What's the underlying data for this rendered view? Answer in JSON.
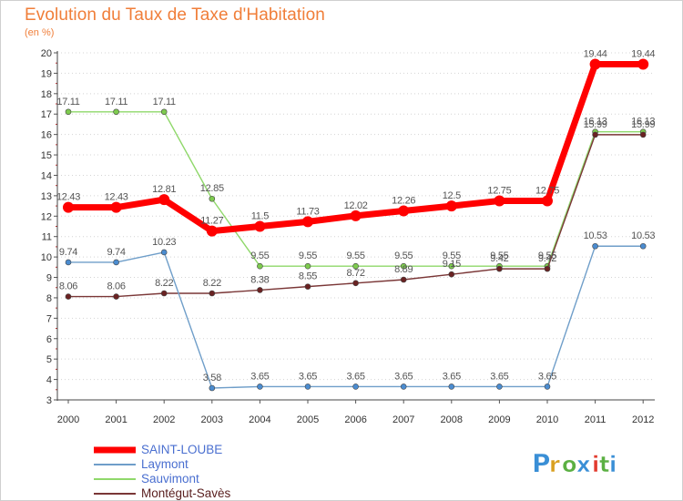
{
  "title": "Evolution du Taux de Taxe d'Habitation",
  "subtitle": "(en %)",
  "brand": {
    "text": "Proxiti",
    "letter_colors": [
      "#3a8fd6",
      "#d9a020",
      "#5bb043",
      "#3a8fd6",
      "#e23b2e",
      "#5bb043",
      "#3a8fd6"
    ]
  },
  "chart_data": {
    "type": "line",
    "title": "Evolution du Taux de Taxe d'Habitation",
    "ylabel": "(en %)",
    "xlabel": "",
    "x": [
      2000,
      2001,
      2002,
      2003,
      2004,
      2005,
      2006,
      2007,
      2008,
      2009,
      2010,
      2011,
      2012
    ],
    "ylim": [
      3,
      20
    ],
    "yticks": [
      3,
      4,
      5,
      6,
      7,
      8,
      9,
      10,
      11,
      12,
      13,
      14,
      15,
      16,
      17,
      18,
      19,
      20
    ],
    "grid": "horizontal dotted",
    "legend_position": "bottom-left",
    "series": [
      {
        "name": "SAINT-LOUBE",
        "color": "#ff0000",
        "marker": "#ff0000",
        "width": "thick",
        "values": [
          12.43,
          12.43,
          12.81,
          11.27,
          11.5,
          11.73,
          12.02,
          12.26,
          12.5,
          12.75,
          12.75,
          19.44,
          19.44
        ],
        "labels": [
          "12.43",
          "12.43",
          "12.81",
          "11.27",
          "11.5",
          "11.73",
          "12.02",
          "12.26",
          "12.5",
          "12.75",
          "12.75",
          "19.44",
          "19.44"
        ]
      },
      {
        "name": "Laymont",
        "color": "#6f9ec9",
        "marker": "#4b8cd0",
        "width": "thin",
        "values": [
          9.74,
          9.74,
          10.23,
          3.58,
          3.65,
          3.65,
          3.65,
          3.65,
          3.65,
          3.65,
          3.65,
          10.53,
          10.53
        ],
        "labels": [
          "9.74",
          "9.74",
          "10.23",
          "3.58",
          "3.65",
          "3.65",
          "3.65",
          "3.65",
          "3.65",
          "3.65",
          "3.65",
          "10.53",
          "10.53"
        ]
      },
      {
        "name": "Sauvimont",
        "color": "#8fd86a",
        "marker": "#7ecb4f",
        "width": "thin",
        "values": [
          17.11,
          17.11,
          17.11,
          12.85,
          9.55,
          9.55,
          9.55,
          9.55,
          9.55,
          9.55,
          9.55,
          16.13,
          16.13
        ],
        "labels": [
          "17.11",
          "17.11",
          "17.11",
          "12.85",
          "9.55",
          "9.55",
          "9.55",
          "9.55",
          "9.55",
          "9.55",
          "9.55",
          "16.13",
          "16.13"
        ]
      },
      {
        "name": "Montégut-Savès",
        "color": "#7a3636",
        "marker": "#6a2222",
        "width": "thin",
        "values": [
          8.06,
          8.06,
          8.22,
          8.22,
          8.38,
          8.55,
          8.72,
          8.89,
          9.15,
          9.42,
          9.42,
          15.99,
          15.99
        ],
        "labels": [
          "8.06",
          "8.06",
          "8.22",
          "8.22",
          "8.38",
          "8.55",
          "8.72",
          "8.89",
          "9.15",
          "9.42",
          "9.42",
          "15.99",
          "15.99"
        ]
      }
    ]
  }
}
